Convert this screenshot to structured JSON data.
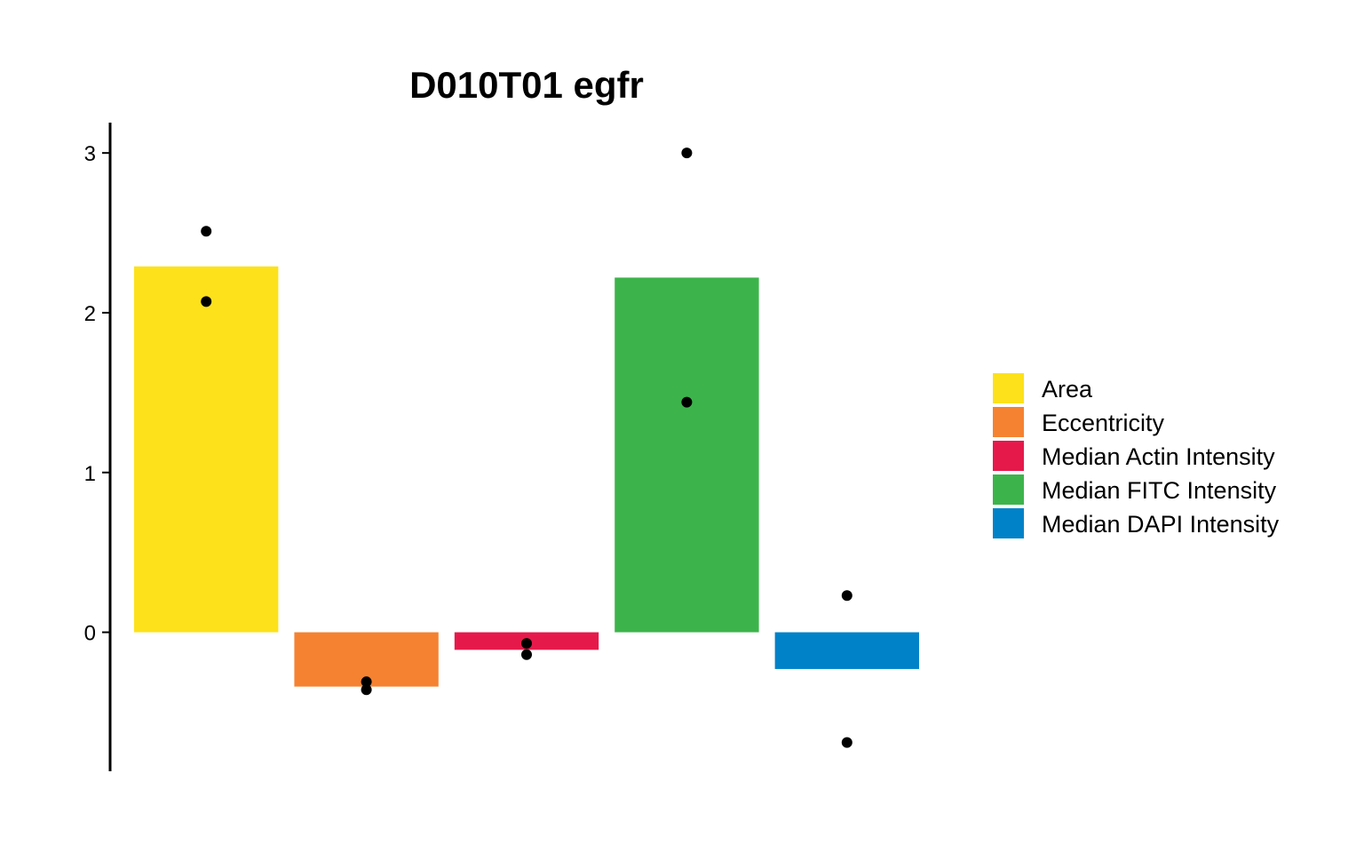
{
  "chart_data": {
    "type": "bar",
    "title": "D010T01 egfr",
    "xlabel": "",
    "ylabel": "",
    "ylim": [
      -0.87,
      3.19
    ],
    "yticks": [
      0,
      1,
      2,
      3
    ],
    "x_axis_visible": false,
    "grid": false,
    "legend_position": "right",
    "categories": [
      "Area",
      "Eccentricity",
      "Median Actin Intensity",
      "Median FITC Intensity",
      "Median DAPI Intensity"
    ],
    "values": [
      2.29,
      -0.34,
      -0.11,
      2.22,
      -0.23
    ],
    "colors": [
      "#FDE11B",
      "#F58231",
      "#E6194B",
      "#3CB44B",
      "#0082C8"
    ],
    "points": [
      [
        2.51,
        2.07
      ],
      [
        -0.31,
        -0.36
      ],
      [
        -0.07,
        -0.14
      ],
      [
        3.0,
        1.44
      ],
      [
        0.23,
        -0.69
      ]
    ],
    "point_color": "#000000"
  }
}
